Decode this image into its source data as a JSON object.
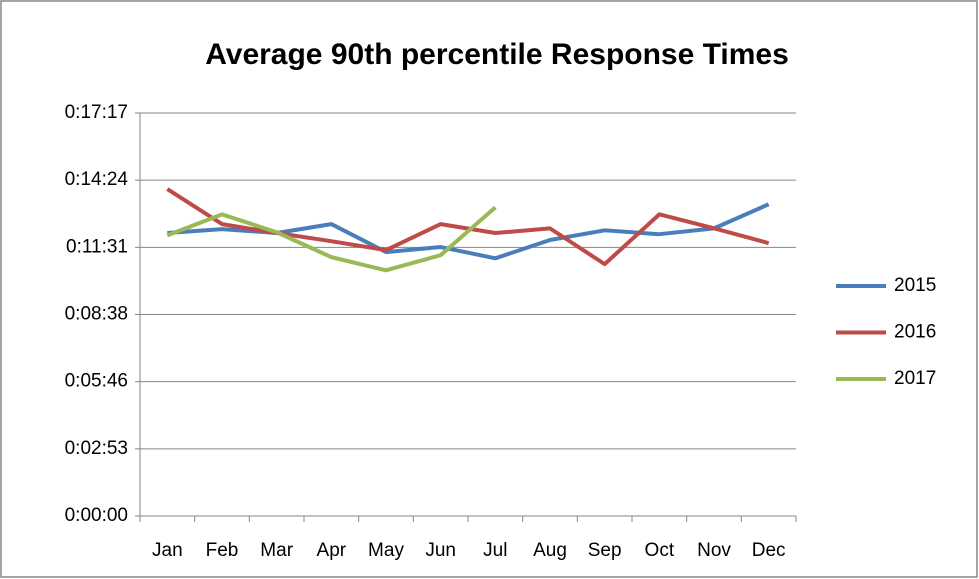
{
  "chart_data": {
    "type": "line",
    "title": "Average 90th percentile Response Times",
    "categories": [
      "Jan",
      "Feb",
      "Mar",
      "Apr",
      "May",
      "Jun",
      "Jul",
      "Aug",
      "Sep",
      "Oct",
      "Nov",
      "Dec"
    ],
    "series": [
      {
        "name": "2015",
        "color": "#4a7ebb",
        "values": [
          728,
          738,
          728,
          751,
          679,
          692,
          663,
          710,
          735,
          725,
          740,
          802
        ]
      },
      {
        "name": "2016",
        "color": "#be4b48",
        "values": [
          841,
          751,
          728,
          707,
          684,
          751,
          728,
          740,
          648,
          776,
          740,
          702
        ]
      },
      {
        "name": "2017",
        "color": "#98b954",
        "values": [
          722,
          776,
          730,
          666,
          632,
          671,
          794,
          null,
          null,
          null,
          null,
          null
        ]
      }
    ],
    "ylim": [
      0,
      1036.8
    ],
    "yticks": [
      {
        "value": 0,
        "label": "0:00:00"
      },
      {
        "value": 172.8,
        "label": "0:02:53"
      },
      {
        "value": 345.6,
        "label": "0:05:46"
      },
      {
        "value": 518.4,
        "label": "0:08:38"
      },
      {
        "value": 691.2,
        "label": "0:11:31"
      },
      {
        "value": 864,
        "label": "0:14:24"
      },
      {
        "value": 1036.8,
        "label": "0:17:17"
      }
    ],
    "grid": true,
    "legend": "right"
  }
}
